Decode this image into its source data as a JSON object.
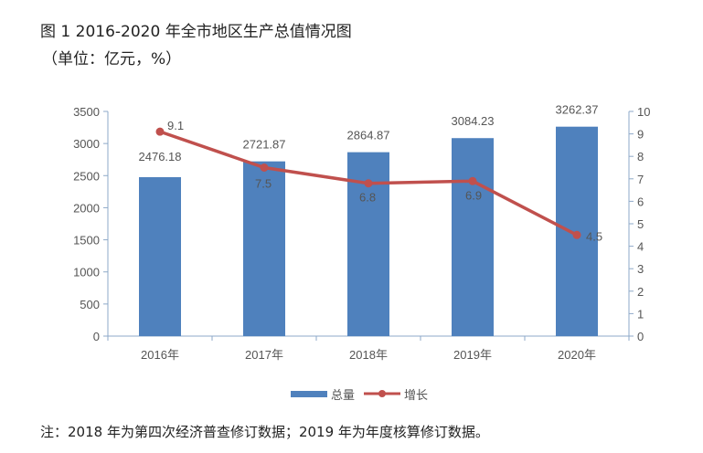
{
  "title": "图 1      2016-2020 年全市地区生产总值情况图",
  "unit": "（单位：亿元，%）",
  "note": "注：2018 年为第四次经济普查修订数据；2019 年为年度核算修订数据。",
  "chart_data": {
    "type": "bar+line",
    "categories": [
      "2016年",
      "2017年",
      "2018年",
      "2019年",
      "2020年"
    ],
    "series": [
      {
        "name": "总量",
        "type": "bar",
        "axis": "left",
        "values": [
          2476.18,
          2721.87,
          2864.87,
          3084.23,
          3262.37
        ],
        "labels": [
          "2476.18",
          "2721.87",
          "2864.87",
          "3084.23",
          "3262.37"
        ],
        "color": "#4f81bd"
      },
      {
        "name": "增长",
        "type": "line",
        "axis": "right",
        "values": [
          9.1,
          7.5,
          6.8,
          6.9,
          4.5
        ],
        "labels": [
          "9.1",
          "7.5",
          "6.8",
          "6.9",
          "4.5"
        ],
        "color": "#c0504d"
      }
    ],
    "left_axis": {
      "ylim": [
        0,
        3500
      ],
      "ticks": [
        "0",
        "500",
        "1000",
        "1500",
        "2000",
        "2500",
        "3000",
        "3500"
      ]
    },
    "right_axis": {
      "ylim": [
        0,
        10
      ],
      "ticks": [
        "0",
        "1",
        "2",
        "3",
        "4",
        "5",
        "6",
        "7",
        "8",
        "9",
        "10"
      ]
    },
    "legend": "bottom",
    "grid": false
  }
}
